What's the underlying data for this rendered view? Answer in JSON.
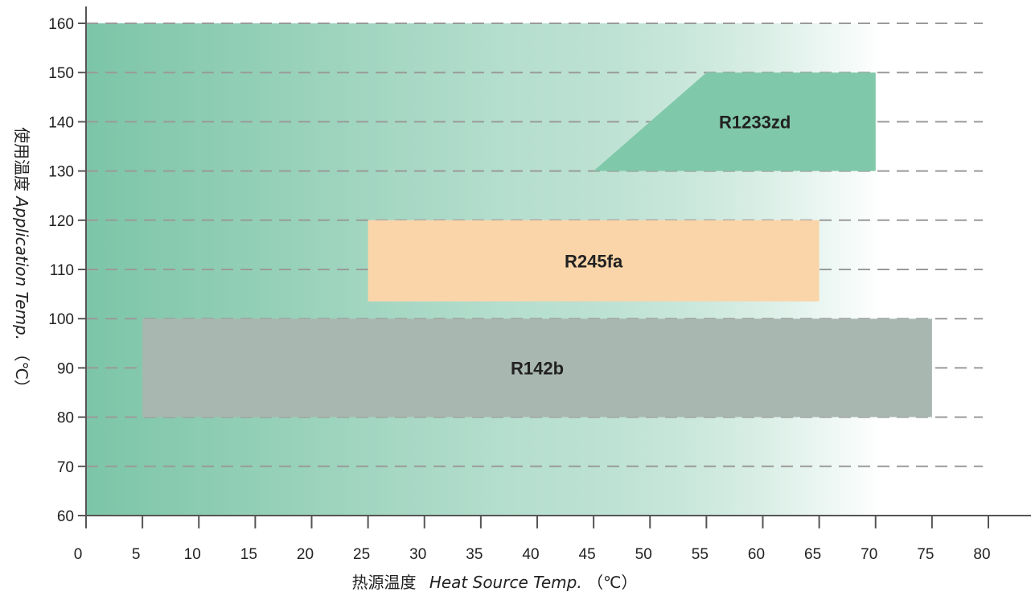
{
  "chart_data": {
    "type": "area",
    "title": "",
    "xlabel_cn": "热源温度",
    "xlabel_en": "Heat Source Temp.",
    "xlabel_unit": "（℃）",
    "ylabel_cn": "使用温度",
    "ylabel_en": "Application Temp.",
    "ylabel_unit": "（℃）",
    "xlim": [
      0,
      80
    ],
    "ylim": [
      60,
      160
    ],
    "x_ticks": [
      0,
      5,
      10,
      15,
      20,
      25,
      30,
      35,
      40,
      45,
      50,
      55,
      60,
      65,
      70,
      75,
      80
    ],
    "y_ticks": [
      60,
      70,
      80,
      90,
      100,
      110,
      120,
      130,
      140,
      150,
      160
    ],
    "grid": "horizontal-dashed",
    "background_gradient": {
      "x_range": [
        0,
        70.5
      ],
      "y_range": [
        60,
        160
      ],
      "color_start": "#7cc5a8",
      "color_end": "#ffffff"
    },
    "regions": [
      {
        "name": "R142b",
        "color": "#a9b7b1",
        "polygon": [
          [
            5,
            80
          ],
          [
            75,
            80
          ],
          [
            75,
            100
          ],
          [
            5,
            100
          ]
        ]
      },
      {
        "name": "R245fa",
        "color": "#fad5a9",
        "polygon": [
          [
            25,
            103.5
          ],
          [
            65,
            103.5
          ],
          [
            65,
            120
          ],
          [
            25,
            120
          ]
        ]
      },
      {
        "name": "R1233zd",
        "color": "#80c8aa",
        "polygon": [
          [
            45,
            130
          ],
          [
            70,
            130
          ],
          [
            70,
            150
          ],
          [
            55,
            150
          ]
        ]
      }
    ]
  }
}
